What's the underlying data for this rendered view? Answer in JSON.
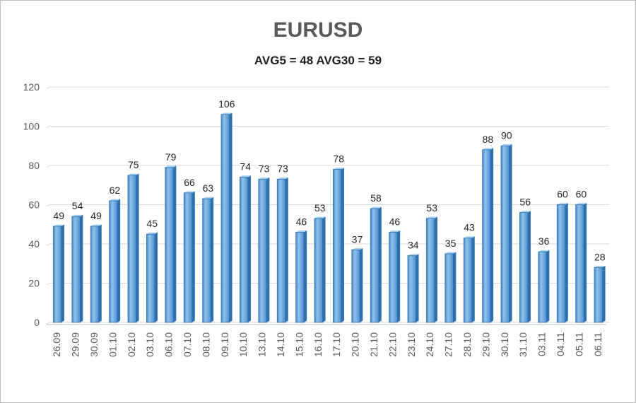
{
  "chart_data": {
    "type": "bar",
    "title": "EURUSD",
    "subtitle": "AVG5 = 48 AVG30 = 59",
    "xlabel": "",
    "ylabel": "",
    "ylim": [
      0,
      120
    ],
    "yticks": [
      0,
      20,
      40,
      60,
      80,
      100,
      120
    ],
    "grid": true,
    "legend": "none",
    "colors": {
      "bar_light": "#8ec3ec",
      "bar_mid": "#5b9bd5",
      "bar_dark": "#2e6fad",
      "grid": "#d9d9d9"
    },
    "categories": [
      "26.09",
      "29.09",
      "30.09",
      "01.10",
      "02.10",
      "03.10",
      "06.10",
      "07.10",
      "08.10",
      "09.10",
      "10.10",
      "13.10",
      "14.10",
      "15.10",
      "16.10",
      "17.10",
      "20.10",
      "21.10",
      "22.10",
      "23.10",
      "24.10",
      "27.10",
      "28.10",
      "29.10",
      "30.10",
      "31.10",
      "03.11",
      "04.11",
      "05.11",
      "06.11"
    ],
    "values": [
      49,
      54,
      49,
      62,
      75,
      45,
      79,
      66,
      63,
      106,
      74,
      73,
      73,
      46,
      53,
      78,
      37,
      58,
      46,
      34,
      53,
      35,
      43,
      88,
      90,
      56,
      36,
      60,
      60,
      28
    ]
  }
}
